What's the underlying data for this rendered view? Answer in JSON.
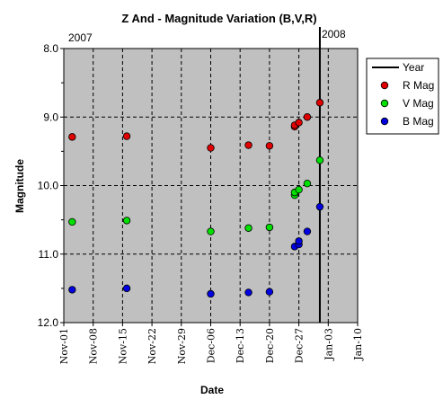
{
  "chart_data": {
    "type": "scatter",
    "title": "Z And - Magnitude Variation (B,V,R)",
    "xlabel": "Date",
    "ylabel": "Magnitude",
    "x_range": [
      "2007-11-01",
      "2008-01-10"
    ],
    "ylim": [
      8.0,
      12.0
    ],
    "y_inverted": true,
    "y_ticks": [
      "8.0",
      "9.0",
      "10.0",
      "11.0",
      "12.0"
    ],
    "x_ticks": [
      {
        "date": "2007-11-01",
        "label": "Nov-01"
      },
      {
        "date": "2007-11-08",
        "label": "Nov-08"
      },
      {
        "date": "2007-11-15",
        "label": "Nov-15"
      },
      {
        "date": "2007-11-22",
        "label": "Nov-22"
      },
      {
        "date": "2007-11-29",
        "label": "Nov-29"
      },
      {
        "date": "2007-12-06",
        "label": "Dec-06"
      },
      {
        "date": "2007-12-13",
        "label": "Dec-13"
      },
      {
        "date": "2007-12-20",
        "label": "Dec-20"
      },
      {
        "date": "2007-12-27",
        "label": "Dec-27"
      },
      {
        "date": "2008-01-03",
        "label": "Jan-03"
      },
      {
        "date": "2008-01-10",
        "label": "Jan-10"
      }
    ],
    "grid": true,
    "legend_position": "right",
    "year_line": {
      "name": "Year",
      "date": "2008-01-01",
      "label_left": "2007",
      "label_right": "2008",
      "color": "#000000"
    },
    "series": [
      {
        "name": "R Mag",
        "color": "#e00000",
        "points": [
          {
            "x": "2007-11-03",
            "y": 9.29
          },
          {
            "x": "2007-11-16",
            "y": 9.28
          },
          {
            "x": "2007-12-06",
            "y": 9.45
          },
          {
            "x": "2007-12-15",
            "y": 9.41
          },
          {
            "x": "2007-12-20",
            "y": 9.42
          },
          {
            "x": "2007-12-26",
            "y": 9.14
          },
          {
            "x": "2007-12-26",
            "y": 9.12
          },
          {
            "x": "2007-12-27",
            "y": 9.08
          },
          {
            "x": "2007-12-29",
            "y": 9.0
          },
          {
            "x": "2008-01-01",
            "y": 8.79
          }
        ]
      },
      {
        "name": "V Mag",
        "color": "#00e000",
        "points": [
          {
            "x": "2007-11-03",
            "y": 10.53
          },
          {
            "x": "2007-11-16",
            "y": 10.51
          },
          {
            "x": "2007-12-06",
            "y": 10.67
          },
          {
            "x": "2007-12-15",
            "y": 10.62
          },
          {
            "x": "2007-12-20",
            "y": 10.61
          },
          {
            "x": "2007-12-26",
            "y": 10.14
          },
          {
            "x": "2007-12-26",
            "y": 10.1
          },
          {
            "x": "2007-12-27",
            "y": 10.06
          },
          {
            "x": "2007-12-29",
            "y": 9.97
          },
          {
            "x": "2008-01-01",
            "y": 9.63
          }
        ]
      },
      {
        "name": "B Mag",
        "color": "#0000e0",
        "points": [
          {
            "x": "2007-11-03",
            "y": 11.52
          },
          {
            "x": "2007-11-16",
            "y": 11.5
          },
          {
            "x": "2007-12-06",
            "y": 11.58
          },
          {
            "x": "2007-12-15",
            "y": 11.56
          },
          {
            "x": "2007-12-20",
            "y": 11.55
          },
          {
            "x": "2007-12-26",
            "y": 10.89
          },
          {
            "x": "2007-12-27",
            "y": 10.86
          },
          {
            "x": "2007-12-27",
            "y": 10.81
          },
          {
            "x": "2007-12-29",
            "y": 10.67
          },
          {
            "x": "2008-01-01",
            "y": 10.31
          }
        ]
      }
    ]
  }
}
